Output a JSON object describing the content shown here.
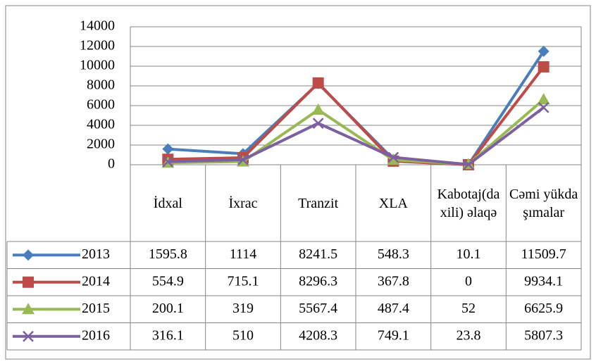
{
  "chart_data": {
    "type": "line",
    "categories": [
      "İdxal",
      "İxrac",
      "Tranzit",
      "XLA",
      "Kabotaj(daxili) əlaqə",
      "Cəmi yükdaşımalar"
    ],
    "series": [
      {
        "name": "2013",
        "color": "#4a7ebb",
        "marker": "diamond",
        "values": [
          1595.8,
          1114,
          8241.5,
          548.3,
          10.1,
          11509.7
        ]
      },
      {
        "name": "2014",
        "color": "#be4b48",
        "marker": "square",
        "values": [
          554.9,
          715.1,
          8296.3,
          367.8,
          0,
          9934.1
        ]
      },
      {
        "name": "2015",
        "color": "#98b954",
        "marker": "triangle",
        "values": [
          200.1,
          319,
          5567.4,
          487.4,
          52,
          6625.9
        ]
      },
      {
        "name": "2016",
        "color": "#7d60a0",
        "marker": "x",
        "values": [
          316.1,
          510,
          4208.3,
          749.1,
          23.8,
          5807.3
        ]
      }
    ],
    "ylim": [
      0,
      14000
    ],
    "yticks": [
      0,
      2000,
      4000,
      6000,
      8000,
      10000,
      12000,
      14000
    ],
    "grid": true,
    "data_table": true
  }
}
